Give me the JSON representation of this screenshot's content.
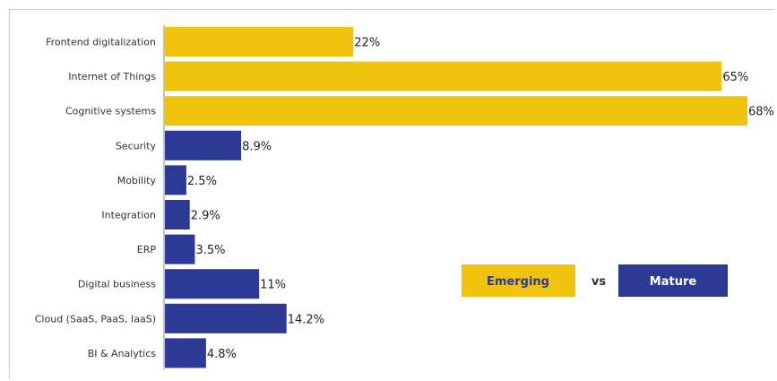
{
  "chart_data": {
    "type": "bar",
    "orientation": "horizontal",
    "categories": [
      "Frontend digitalization",
      "Internet of Things",
      "Cognitive systems",
      "Security",
      "Mobility",
      "Integration",
      "ERP",
      "Digital business",
      "Cloud (SaaS, PaaS, IaaS)",
      "BI & Analytics"
    ],
    "values": [
      22,
      65,
      68,
      8.9,
      2.5,
      2.9,
      3.5,
      11,
      14.2,
      4.8
    ],
    "value_labels": [
      "22%",
      "65%",
      "68%",
      "8.9%",
      "2.5%",
      "2.9%",
      "3.5%",
      "11%",
      "14.2%",
      "4.8%"
    ],
    "groups": [
      "Emerging",
      "Emerging",
      "Emerging",
      "Mature",
      "Mature",
      "Mature",
      "Mature",
      "Mature",
      "Mature",
      "Mature"
    ],
    "xlim": [
      0,
      68
    ],
    "grid": false,
    "legend": {
      "placement": "center-right",
      "items": [
        {
          "label": "Emerging",
          "color": "#f0c30f"
        },
        {
          "label": "Mature",
          "color": "#2c3a96"
        }
      ],
      "separator": "vs"
    },
    "colors": {
      "Emerging": "#f0c30f",
      "Mature": "#2c3a96"
    }
  }
}
